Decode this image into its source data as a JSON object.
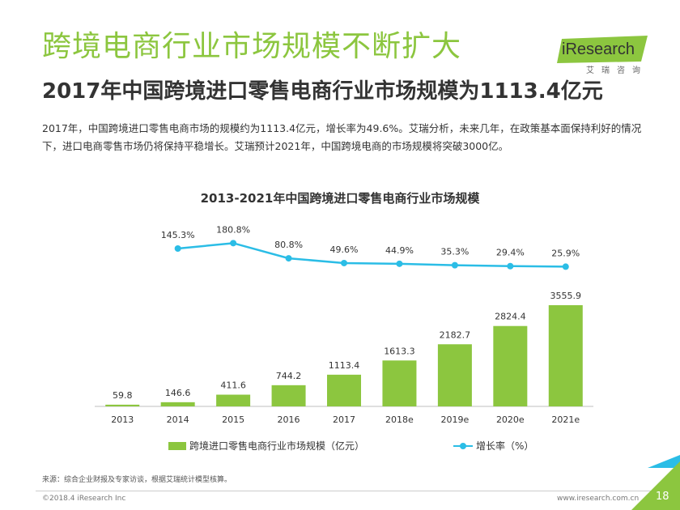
{
  "header": {
    "title": "跨境电商行业市场规模不断扩大",
    "subtitle": "2017年中国跨境进口零售电商行业市场规模为1113.4亿元",
    "summary": "2017年，中国跨境进口零售电商市场的规模约为1113.4亿元，增长率为49.6%。艾瑞分析，未来几年，在政策基本面保持利好的情况下，进口电商零售市场仍将保持平稳增长。艾瑞预计2021年，中国跨境电商的市场规模将突破3000亿。"
  },
  "logo": {
    "word": "iResearch",
    "sub": "艾瑞咨询"
  },
  "chart_data": {
    "type": "bar",
    "title": "2013-2021年中国跨境进口零售电商行业市场规模",
    "categories": [
      "2013",
      "2014",
      "2015",
      "2016",
      "2017",
      "2018e",
      "2019e",
      "2020e",
      "2021e"
    ],
    "series": [
      {
        "name": "跨境进口零售电商行业市场规模（亿元）",
        "type": "bar",
        "values": [
          59.8,
          146.6,
          411.6,
          744.2,
          1113.4,
          1613.3,
          2182.7,
          2824.4,
          3555.9
        ],
        "labels": [
          "59.8",
          "146.6",
          "411.6",
          "744.2",
          "1113.4",
          "1613.3",
          "2182.7",
          "2824.4",
          "3555.9"
        ],
        "color": "#8cc63f"
      },
      {
        "name": "增长率（%）",
        "type": "line",
        "values": [
          null,
          145.3,
          180.8,
          80.8,
          49.6,
          44.9,
          35.3,
          29.4,
          25.9
        ],
        "labels": [
          "",
          "145.3%",
          "180.8%",
          "80.8%",
          "49.6%",
          "44.9%",
          "35.3%",
          "29.4%",
          "25.9%"
        ],
        "color": "#2bbde6"
      }
    ],
    "ylim": [
      0,
      4000
    ],
    "y2lim": [
      -420,
      300
    ],
    "grid": false,
    "legend": "bottom"
  },
  "footer": {
    "source": "来源：综合企业财报及专家访谈，根据艾瑞统计模型核算。",
    "copyright": "©2018.4 iResearch Inc",
    "website": "www.iresearch.com.cn",
    "page": "18"
  }
}
